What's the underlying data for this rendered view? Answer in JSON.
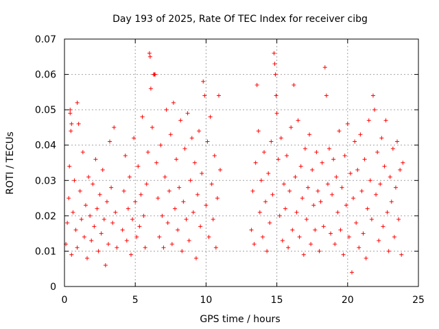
{
  "chart_data": {
    "type": "scatter",
    "title": "Day 193 of 2025, Rate Of TEC Index for receiver cibg",
    "xlabel": "GPS time / hours",
    "ylabel": "ROTI / TECUs",
    "xlim": [
      0,
      25
    ],
    "ylim": [
      0,
      0.07
    ],
    "xticks": [
      0,
      5,
      10,
      15,
      20,
      25
    ],
    "xtick_labels": [
      "0",
      "5",
      "10",
      "15",
      "20",
      "25"
    ],
    "yticks": [
      0,
      0.01,
      0.02,
      0.03,
      0.04,
      0.05,
      0.06,
      0.07
    ],
    "ytick_labels": [
      "0",
      "0.01",
      "0.02",
      "0.03",
      "0.04",
      "0.05",
      "0.06",
      "0.07"
    ],
    "grid": true,
    "marker": "+",
    "colors": {
      "points": "#ff0000",
      "axes": "#000000",
      "grid": "#a0a0a0"
    },
    "series": [
      {
        "name": "ROTI",
        "points": [
          [
            0.1,
            0.012
          ],
          [
            0.2,
            0.018
          ],
          [
            0.3,
            0.025
          ],
          [
            0.35,
            0.034
          ],
          [
            0.4,
            0.05
          ],
          [
            0.45,
            0.044
          ],
          [
            0.5,
            0.009
          ],
          [
            0.6,
            0.021
          ],
          [
            0.7,
            0.03
          ],
          [
            0.8,
            0.016
          ],
          [
            0.9,
            0.011
          ],
          [
            1.0,
            0.046
          ],
          [
            1.1,
            0.027
          ],
          [
            1.2,
            0.019
          ],
          [
            1.3,
            0.038
          ],
          [
            1.4,
            0.014
          ],
          [
            1.5,
            0.023
          ],
          [
            1.6,
            0.008
          ],
          [
            1.7,
            0.031
          ],
          [
            1.8,
            0.02
          ],
          [
            1.9,
            0.013
          ],
          [
            2.0,
            0.029
          ],
          [
            2.1,
            0.017
          ],
          [
            2.2,
            0.036
          ],
          [
            2.3,
            0.022
          ],
          [
            2.4,
            0.01
          ],
          [
            2.5,
            0.026
          ],
          [
            2.6,
            0.015
          ],
          [
            2.7,
            0.033
          ],
          [
            2.8,
            0.019
          ],
          [
            2.9,
            0.006
          ],
          [
            3.0,
            0.024
          ],
          [
            3.1,
            0.012
          ],
          [
            3.2,
            0.041
          ],
          [
            3.3,
            0.028
          ],
          [
            3.4,
            0.018
          ],
          [
            3.5,
            0.045
          ],
          [
            3.6,
            0.021
          ],
          [
            3.7,
            0.011
          ],
          [
            0.4,
            0.049
          ],
          [
            0.5,
            0.046
          ],
          [
            0.9,
            0.052
          ],
          [
            4.1,
            0.016
          ],
          [
            4.2,
            0.027
          ],
          [
            4.3,
            0.037
          ],
          [
            4.4,
            0.013
          ],
          [
            4.5,
            0.022
          ],
          [
            4.6,
            0.031
          ],
          [
            4.7,
            0.009
          ],
          [
            4.8,
            0.019
          ],
          [
            4.9,
            0.042
          ],
          [
            5.0,
            0.024
          ],
          [
            5.1,
            0.014
          ],
          [
            5.2,
            0.034
          ],
          [
            5.3,
            0.017
          ],
          [
            5.4,
            0.026
          ],
          [
            5.5,
            0.048
          ],
          [
            5.6,
            0.02
          ],
          [
            5.7,
            0.011
          ],
          [
            5.8,
            0.029
          ],
          [
            5.9,
            0.038
          ],
          [
            6.0,
            0.066
          ],
          [
            6.05,
            0.065
          ],
          [
            6.1,
            0.056
          ],
          [
            6.2,
            0.045
          ],
          [
            6.3,
            0.06
          ],
          [
            6.35,
            0.06
          ],
          [
            6.4,
            0.06
          ],
          [
            6.5,
            0.035
          ],
          [
            6.6,
            0.025
          ],
          [
            6.7,
            0.014
          ],
          [
            6.8,
            0.04
          ],
          [
            6.9,
            0.02
          ],
          [
            7.0,
            0.011
          ],
          [
            7.1,
            0.031
          ],
          [
            7.2,
            0.05
          ],
          [
            7.3,
            0.018
          ],
          [
            7.4,
            0.027
          ],
          [
            7.5,
            0.043
          ],
          [
            7.6,
            0.012
          ],
          [
            7.7,
            0.052
          ],
          [
            7.8,
            0.022
          ],
          [
            7.9,
            0.036
          ],
          [
            8.0,
            0.016
          ],
          [
            8.1,
            0.028
          ],
          [
            8.2,
            0.047
          ],
          [
            8.3,
            0.01
          ],
          [
            8.4,
            0.024
          ],
          [
            8.5,
            0.039
          ],
          [
            8.6,
            0.019
          ],
          [
            8.7,
            0.049
          ],
          [
            8.8,
            0.013
          ],
          [
            8.9,
            0.03
          ],
          [
            9.0,
            0.042
          ],
          [
            9.1,
            0.021
          ],
          [
            9.2,
            0.035
          ],
          [
            9.3,
            0.008
          ],
          [
            9.4,
            0.026
          ],
          [
            9.5,
            0.044
          ],
          [
            9.6,
            0.017
          ],
          [
            9.7,
            0.032
          ],
          [
            9.8,
            0.058
          ],
          [
            9.9,
            0.054
          ],
          [
            10.0,
            0.023
          ],
          [
            10.1,
            0.041
          ],
          [
            10.2,
            0.014
          ],
          [
            10.3,
            0.048
          ],
          [
            10.4,
            0.029
          ],
          [
            10.5,
            0.019
          ],
          [
            10.6,
            0.037
          ],
          [
            10.7,
            0.011
          ],
          [
            10.8,
            0.025
          ],
          [
            10.9,
            0.054
          ],
          [
            11.0,
            0.033
          ],
          [
            13.2,
            0.016
          ],
          [
            13.3,
            0.027
          ],
          [
            13.4,
            0.012
          ],
          [
            13.5,
            0.035
          ],
          [
            13.6,
            0.057
          ],
          [
            13.7,
            0.044
          ],
          [
            13.8,
            0.021
          ],
          [
            13.9,
            0.03
          ],
          [
            14.0,
            0.014
          ],
          [
            14.1,
            0.038
          ],
          [
            14.2,
            0.024
          ],
          [
            14.3,
            0.01
          ],
          [
            14.4,
            0.032
          ],
          [
            14.5,
            0.018
          ],
          [
            14.6,
            0.041
          ],
          [
            14.7,
            0.026
          ],
          [
            14.8,
            0.066
          ],
          [
            14.85,
            0.063
          ],
          [
            14.9,
            0.06
          ],
          [
            14.95,
            0.054
          ],
          [
            15.0,
            0.049
          ],
          [
            15.1,
            0.036
          ],
          [
            15.2,
            0.02
          ],
          [
            15.3,
            0.042
          ],
          [
            15.4,
            0.013
          ],
          [
            15.5,
            0.029
          ],
          [
            15.6,
            0.022
          ],
          [
            15.7,
            0.037
          ],
          [
            15.8,
            0.011
          ],
          [
            15.9,
            0.027
          ],
          [
            16.0,
            0.045
          ],
          [
            16.1,
            0.016
          ],
          [
            16.2,
            0.057
          ],
          [
            16.3,
            0.031
          ],
          [
            16.4,
            0.021
          ],
          [
            16.5,
            0.047
          ],
          [
            16.6,
            0.014
          ],
          [
            16.7,
            0.034
          ],
          [
            16.8,
            0.025
          ],
          [
            16.9,
            0.009
          ],
          [
            17.0,
            0.039
          ],
          [
            17.1,
            0.019
          ],
          [
            17.2,
            0.028
          ],
          [
            17.3,
            0.043
          ],
          [
            17.4,
            0.012
          ],
          [
            17.5,
            0.033
          ],
          [
            17.6,
            0.023
          ],
          [
            17.7,
            0.016
          ],
          [
            17.8,
            0.038
          ],
          [
            17.9,
            0.027
          ],
          [
            18.0,
            0.01
          ],
          [
            18.1,
            0.024
          ],
          [
            18.2,
            0.035
          ],
          [
            18.3,
            0.017
          ],
          [
            18.4,
            0.062
          ],
          [
            18.5,
            0.054
          ],
          [
            18.6,
            0.029
          ],
          [
            18.7,
            0.039
          ],
          [
            18.8,
            0.015
          ],
          [
            18.9,
            0.026
          ],
          [
            19.0,
            0.036
          ],
          [
            19.1,
            0.012
          ],
          [
            19.2,
            0.031
          ],
          [
            19.3,
            0.021
          ],
          [
            19.4,
            0.044
          ],
          [
            19.5,
            0.016
          ],
          [
            19.6,
            0.028
          ],
          [
            19.7,
            0.009
          ],
          [
            19.8,
            0.037
          ],
          [
            19.9,
            0.023
          ],
          [
            20.0,
            0.046
          ],
          [
            20.1,
            0.014
          ],
          [
            20.2,
            0.032
          ],
          [
            20.3,
            0.004
          ],
          [
            20.4,
            0.025
          ],
          [
            20.5,
            0.041
          ],
          [
            20.6,
            0.018
          ],
          [
            20.7,
            0.033
          ],
          [
            20.8,
            0.011
          ],
          [
            20.9,
            0.043
          ],
          [
            21.0,
            0.027
          ],
          [
            21.1,
            0.015
          ],
          [
            21.2,
            0.036
          ],
          [
            21.3,
            0.008
          ],
          [
            21.4,
            0.022
          ],
          [
            21.5,
            0.047
          ],
          [
            21.6,
            0.03
          ],
          [
            21.7,
            0.019
          ],
          [
            21.8,
            0.054
          ],
          [
            21.9,
            0.05
          ],
          [
            22.0,
            0.026
          ],
          [
            22.1,
            0.038
          ],
          [
            22.2,
            0.013
          ],
          [
            22.3,
            0.029
          ],
          [
            22.4,
            0.042
          ],
          [
            22.5,
            0.017
          ],
          [
            22.6,
            0.034
          ],
          [
            22.7,
            0.047
          ],
          [
            22.8,
            0.021
          ],
          [
            22.9,
            0.01
          ],
          [
            23.0,
            0.031
          ],
          [
            23.1,
            0.024
          ],
          [
            23.2,
            0.039
          ],
          [
            23.3,
            0.014
          ],
          [
            23.4,
            0.028
          ],
          [
            23.5,
            0.041
          ],
          [
            23.6,
            0.019
          ],
          [
            23.7,
            0.033
          ],
          [
            23.8,
            0.009
          ],
          [
            23.9,
            0.035
          ]
        ]
      }
    ]
  }
}
